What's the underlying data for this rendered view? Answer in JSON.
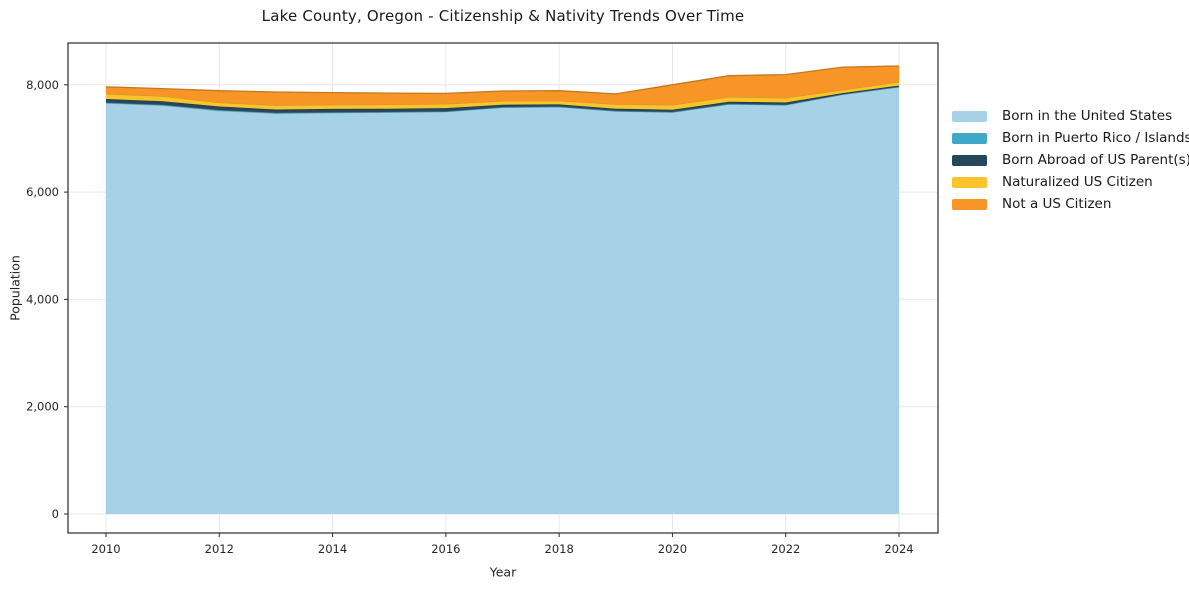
{
  "page": {
    "background": "#ffffff"
  },
  "chart_data": {
    "type": "area",
    "stacked": true,
    "title": "Lake County, Oregon - Citizenship & Nativity Trends Over Time",
    "xlabel": "Year",
    "ylabel": "Population",
    "x": [
      2010,
      2011,
      2012,
      2013,
      2014,
      2015,
      2016,
      2017,
      2018,
      2019,
      2020,
      2021,
      2022,
      2023,
      2024
    ],
    "series": [
      {
        "name": "Born in the United States",
        "color": "#a6d1e6",
        "values": [
          7660,
          7620,
          7520,
          7470,
          7480,
          7490,
          7500,
          7580,
          7590,
          7510,
          7490,
          7640,
          7625,
          7820,
          7960
        ]
      },
      {
        "name": "Born in Puerto Rico / Islands",
        "color": "#3fa8c9",
        "values": [
          10,
          10,
          10,
          10,
          10,
          5,
          5,
          5,
          5,
          5,
          5,
          5,
          5,
          5,
          5
        ]
      },
      {
        "name": "Born Abroad of US Parent(s)",
        "color": "#25475c",
        "values": [
          65,
          65,
          65,
          60,
          60,
          60,
          60,
          45,
          40,
          40,
          40,
          40,
          40,
          20,
          20
        ]
      },
      {
        "name": "Naturalized US Citizen",
        "color": "#fdc32d",
        "values": [
          95,
          95,
          75,
          80,
          80,
          80,
          80,
          70,
          70,
          85,
          90,
          90,
          90,
          60,
          70
        ]
      },
      {
        "name": "Not a US Citizen",
        "color": "#f79627",
        "values": [
          130,
          140,
          220,
          245,
          225,
          210,
          195,
          185,
          185,
          190,
          375,
          395,
          430,
          425,
          295
        ]
      }
    ],
    "xticks": [
      2010,
      2012,
      2014,
      2016,
      2018,
      2020,
      2022,
      2024
    ],
    "yticks": [
      {
        "value": 0,
        "label": "0"
      },
      {
        "value": 2000,
        "label": "2,000"
      },
      {
        "value": 4000,
        "label": "4,000"
      },
      {
        "value": 6000,
        "label": "6,000"
      },
      {
        "value": 8000,
        "label": "8,000"
      }
    ],
    "ylim": [
      -350,
      8780
    ],
    "xlim": [
      2009.3,
      2024.7
    ],
    "grid": true,
    "legend_position": "right-outside",
    "axis_color": "#2a2a2a",
    "grid_color": "#e7e7e7",
    "tick_label_color": "#262626"
  }
}
